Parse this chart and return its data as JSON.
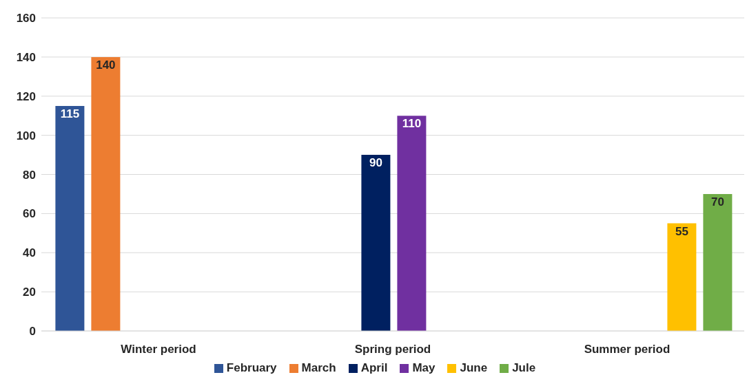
{
  "chart_data": {
    "type": "bar",
    "categories": [
      "Winter period",
      "Spring period",
      "Summer period"
    ],
    "series": [
      {
        "name": "February",
        "color": "#2f5597",
        "values": [
          115,
          null,
          null
        ]
      },
      {
        "name": "March",
        "color": "#ed7d31",
        "values": [
          140,
          null,
          null
        ]
      },
      {
        "name": "April",
        "color": "#002060",
        "values": [
          null,
          90,
          null
        ]
      },
      {
        "name": "May",
        "color": "#7030a0",
        "values": [
          null,
          110,
          null
        ]
      },
      {
        "name": "June",
        "color": "#ffc000",
        "values": [
          null,
          null,
          55
        ]
      },
      {
        "name": "Jule",
        "color": "#70ad47",
        "values": [
          null,
          null,
          70
        ]
      }
    ],
    "ylim": [
      0,
      160
    ],
    "yticks": [
      0,
      20,
      40,
      60,
      80,
      100,
      120,
      140,
      160
    ],
    "grid": "y",
    "legend": "bottom",
    "data_labels": true
  }
}
